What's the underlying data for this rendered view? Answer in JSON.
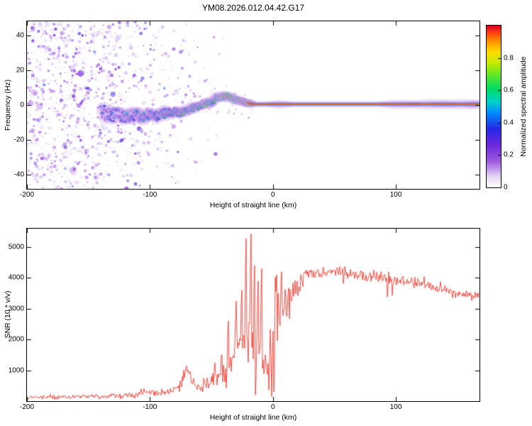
{
  "title": "YM08.2026.012.04.42.G17",
  "chart_data": [
    {
      "type": "heatmap",
      "subtype": "doppler-spectrogram",
      "title": "YM08.2026.012.04.42.G17",
      "xlabel": "Height of straight line (km)",
      "ylabel": "Frequency (Hz)",
      "xlim": [
        -200,
        168
      ],
      "ylim": [
        -48,
        48
      ],
      "xticks": [
        -200,
        -100,
        0,
        100
      ],
      "yticks": [
        -40,
        -20,
        0,
        20,
        40
      ],
      "grid": false,
      "colorbar": {
        "label": "Normalized spectral amplitude",
        "lim": [
          0,
          1
        ],
        "ticks": [
          0,
          0.2,
          0.4,
          0.6,
          0.8
        ]
      },
      "colormap": [
        [
          0.0,
          "#ffffff"
        ],
        [
          0.06,
          "#e8dcf6"
        ],
        [
          0.16,
          "#a05ae0"
        ],
        [
          0.26,
          "#6e28dc"
        ],
        [
          0.36,
          "#2828e6"
        ],
        [
          0.46,
          "#008cff"
        ],
        [
          0.53,
          "#00d2c8"
        ],
        [
          0.61,
          "#00dc64"
        ],
        [
          0.69,
          "#5ae628"
        ],
        [
          0.77,
          "#c8eb00"
        ],
        [
          0.84,
          "#ffdc00"
        ],
        [
          0.91,
          "#ff8c00"
        ],
        [
          0.96,
          "#ff3c14"
        ],
        [
          1.0,
          "#dc001e"
        ]
      ],
      "noise_density": [
        [
          -200,
          1.0
        ],
        [
          -160,
          0.95
        ],
        [
          -135,
          0.8
        ],
        [
          -120,
          0.55
        ],
        [
          -105,
          0.42
        ],
        [
          -90,
          0.3
        ],
        [
          -75,
          0.2
        ],
        [
          -60,
          0.13
        ],
        [
          -45,
          0.08
        ],
        [
          -30,
          0.045
        ],
        [
          -15,
          0.02
        ],
        [
          0,
          0.008
        ],
        [
          40,
          0.004
        ],
        [
          168,
          0.003
        ]
      ],
      "signal_trace": {
        "center_hz": [
          [
            -138,
            -4
          ],
          [
            -132,
            -6
          ],
          [
            -126,
            -5
          ],
          [
            -120,
            -7
          ],
          [
            -114,
            -5
          ],
          [
            -108,
            -7
          ],
          [
            -102,
            -6
          ],
          [
            -96,
            -7
          ],
          [
            -90,
            -5
          ],
          [
            -84,
            -4
          ],
          [
            -78,
            -5
          ],
          [
            -72,
            -3
          ],
          [
            -66,
            -2
          ],
          [
            -60,
            -1
          ],
          [
            -54,
            1
          ],
          [
            -50,
            2
          ],
          [
            -46,
            4
          ],
          [
            -42,
            5
          ],
          [
            -38,
            5.5
          ],
          [
            -34,
            4
          ],
          [
            -30,
            2.5
          ],
          [
            -27,
            3
          ],
          [
            -24,
            1.5
          ],
          [
            -21,
            1
          ],
          [
            -18,
            0.5
          ]
        ],
        "amplitude": [
          [
            -140,
            0.35
          ],
          [
            -115,
            0.45
          ],
          [
            -95,
            0.5
          ],
          [
            -75,
            0.6
          ],
          [
            -60,
            0.68
          ],
          [
            -48,
            0.75
          ],
          [
            -38,
            0.85
          ],
          [
            -30,
            0.9
          ],
          [
            -24,
            0.95
          ],
          [
            -18,
            1.0
          ]
        ],
        "jitter_hz": [
          [
            -140,
            4.0
          ],
          [
            -110,
            3.2
          ],
          [
            -85,
            2.4
          ],
          [
            -60,
            1.8
          ],
          [
            -45,
            1.3
          ],
          [
            -30,
            0.9
          ],
          [
            -18,
            0.4
          ]
        ],
        "flat_from_km": -18,
        "flat_freq_hz": 0.5,
        "flat_halo_bumps": [
          [
            5,
            12,
            2.5
          ],
          [
            103,
            18,
            2.8
          ],
          [
            128,
            22,
            3.2
          ],
          [
            152,
            24,
            3.2
          ],
          [
            166,
            14,
            2.8
          ]
        ]
      }
    },
    {
      "type": "line",
      "xlabel": "Height of straight line (km)",
      "ylabel": "SNR (10 * v/v)",
      "xlim": [
        -200,
        168
      ],
      "ylim": [
        0,
        5600
      ],
      "xticks": [
        -200,
        -100,
        0,
        100
      ],
      "yticks": [
        1000,
        2000,
        3000,
        4000,
        5000
      ],
      "grid": false,
      "line_color": "#f03228",
      "envelope": [
        [
          -200,
          120
        ],
        [
          -180,
          130
        ],
        [
          -160,
          145
        ],
        [
          -140,
          160
        ],
        [
          -120,
          185
        ],
        [
          -110,
          230
        ],
        [
          -105,
          290
        ],
        [
          -100,
          265
        ],
        [
          -95,
          255
        ],
        [
          -90,
          290
        ],
        [
          -85,
          320
        ],
        [
          -80,
          370
        ],
        [
          -76,
          500
        ],
        [
          -72,
          780
        ],
        [
          -69,
          1000
        ],
        [
          -66,
          680
        ],
        [
          -62,
          490
        ],
        [
          -58,
          470
        ],
        [
          -54,
          520
        ],
        [
          -50,
          620
        ],
        [
          -46,
          750
        ],
        [
          -42,
          900
        ],
        [
          -38,
          1100
        ],
        [
          -34,
          1350
        ],
        [
          -30,
          1600
        ],
        [
          -26,
          1850
        ],
        [
          -22,
          2050
        ],
        [
          -18,
          2150
        ],
        [
          -14,
          1900
        ],
        [
          -10,
          1500
        ],
        [
          -7,
          1100
        ],
        [
          -4,
          900
        ],
        [
          -2,
          1400
        ],
        [
          0,
          2200
        ],
        [
          2,
          2600
        ],
        [
          4,
          2400
        ],
        [
          6,
          2800
        ],
        [
          8,
          3000
        ],
        [
          10,
          3200
        ],
        [
          13,
          3000
        ],
        [
          16,
          3400
        ],
        [
          20,
          3700
        ],
        [
          24,
          3900
        ],
        [
          28,
          4050
        ],
        [
          32,
          4120
        ],
        [
          36,
          4160
        ],
        [
          40,
          4180
        ],
        [
          45,
          4200
        ],
        [
          50,
          4220
        ],
        [
          55,
          4200
        ],
        [
          60,
          4180
        ],
        [
          65,
          4150
        ],
        [
          70,
          4120
        ],
        [
          75,
          4100
        ],
        [
          80,
          4060
        ],
        [
          85,
          4030
        ],
        [
          90,
          3990
        ],
        [
          95,
          3960
        ],
        [
          100,
          3930
        ],
        [
          105,
          3900
        ],
        [
          110,
          3870
        ],
        [
          115,
          3840
        ],
        [
          120,
          3800
        ],
        [
          125,
          3760
        ],
        [
          130,
          3710
        ],
        [
          135,
          3660
        ],
        [
          140,
          3610
        ],
        [
          145,
          3560
        ],
        [
          150,
          3520
        ],
        [
          155,
          3490
        ],
        [
          160,
          3460
        ],
        [
          164,
          3440
        ],
        [
          168,
          3420
        ]
      ],
      "noise_sigma": [
        [
          -200,
          40
        ],
        [
          -150,
          45
        ],
        [
          -120,
          55
        ],
        [
          -100,
          60
        ],
        [
          -80,
          80
        ],
        [
          -72,
          130
        ],
        [
          -65,
          110
        ],
        [
          -55,
          120
        ],
        [
          -48,
          170
        ],
        [
          -42,
          250
        ],
        [
          -36,
          330
        ],
        [
          -30,
          400
        ],
        [
          -24,
          450
        ],
        [
          -18,
          480
        ],
        [
          -12,
          520
        ],
        [
          -6,
          500
        ],
        [
          -2,
          520
        ],
        [
          2,
          540
        ],
        [
          6,
          520
        ],
        [
          10,
          480
        ],
        [
          14,
          420
        ],
        [
          18,
          330
        ],
        [
          22,
          260
        ],
        [
          26,
          190
        ],
        [
          30,
          150
        ],
        [
          36,
          130
        ],
        [
          45,
          115
        ],
        [
          60,
          110
        ],
        [
          90,
          110
        ],
        [
          120,
          105
        ],
        [
          150,
          95
        ],
        [
          168,
          95
        ]
      ],
      "spikes": [
        [
          -70,
          1140
        ],
        [
          -47,
          1250
        ],
        [
          -36,
          2600
        ],
        [
          -30,
          3250
        ],
        [
          -25,
          3600
        ],
        [
          -22,
          5280
        ],
        [
          -18,
          5430
        ],
        [
          -15,
          4400
        ],
        [
          -12,
          3900
        ],
        [
          -9,
          4300
        ],
        [
          3,
          4100
        ],
        [
          7,
          4200
        ],
        [
          41,
          4350
        ]
      ],
      "down_spikes": [
        [
          -14,
          200
        ],
        [
          -1,
          150
        ],
        [
          0.5,
          300
        ],
        [
          57,
          3820
        ],
        [
          93,
          3380
        ],
        [
          97,
          3430
        ]
      ]
    }
  ]
}
